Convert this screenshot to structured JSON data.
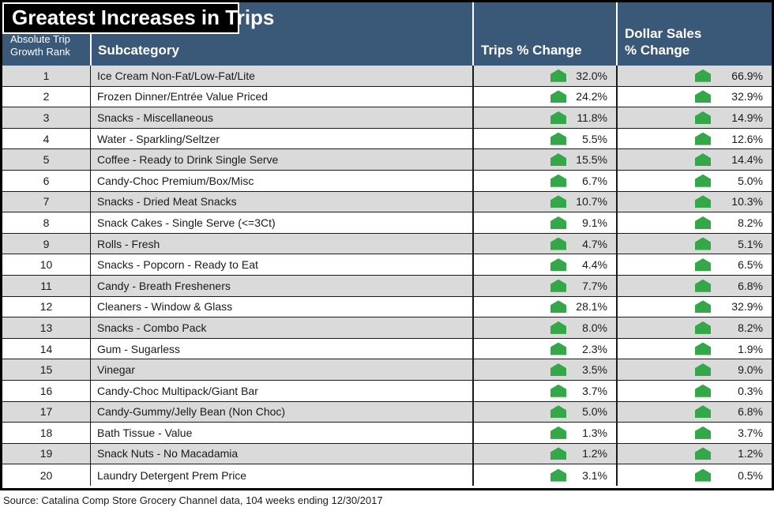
{
  "title": "Greatest Increases in Trips",
  "header": {
    "rank_line1": "Absolute Trip",
    "rank_line2": "Growth Rank",
    "subcategory": "Subcategory",
    "trips": "Trips % Change",
    "dollar_line1": "Dollar Sales",
    "dollar_line2": "% Change"
  },
  "source": "Source: Catalina Comp Store Grocery Channel data, 104 weeks ending 12/30/2017",
  "icons": {
    "up_arrow": "green up-arrow indicator shown beside every percentage value"
  },
  "colors": {
    "header_blue": "#3a5878",
    "title_bg": "#000000",
    "row_alt_gray": "#dadada",
    "grid_line": "#1a1a1a",
    "increase_green": "#34a849"
  },
  "chart_data": {
    "type": "table",
    "title": "Greatest Increases in Trips",
    "columns": [
      "Absolute Trip Growth Rank",
      "Subcategory",
      "Trips % Change",
      "Dollar Sales % Change"
    ],
    "rows": [
      [
        1,
        "Ice Cream Non-Fat/Low-Fat/Lite",
        "32.0%",
        "66.9%"
      ],
      [
        2,
        "Frozen Dinner/Entrée Value Priced",
        "24.2%",
        "32.9%"
      ],
      [
        3,
        "Snacks - Miscellaneous",
        "11.8%",
        "14.9%"
      ],
      [
        4,
        "Water - Sparkling/Seltzer",
        "5.5%",
        "12.6%"
      ],
      [
        5,
        "Coffee - Ready to Drink Single Serve",
        "15.5%",
        "14.4%"
      ],
      [
        6,
        "Candy-Choc Premium/Box/Misc",
        "6.7%",
        "5.0%"
      ],
      [
        7,
        "Snacks - Dried Meat Snacks",
        "10.7%",
        "10.3%"
      ],
      [
        8,
        "Snack Cakes - Single Serve (<=3Ct)",
        "9.1%",
        "8.2%"
      ],
      [
        9,
        "Rolls - Fresh",
        "4.7%",
        "5.1%"
      ],
      [
        10,
        "Snacks - Popcorn - Ready to Eat",
        "4.4%",
        "6.5%"
      ],
      [
        11,
        "Candy - Breath Fresheners",
        "7.7%",
        "6.8%"
      ],
      [
        12,
        "Cleaners - Window & Glass",
        "28.1%",
        "32.9%"
      ],
      [
        13,
        "Snacks - Combo Pack",
        "8.0%",
        "8.2%"
      ],
      [
        14,
        "Gum - Sugarless",
        "2.3%",
        "1.9%"
      ],
      [
        15,
        "Vinegar",
        "3.5%",
        "9.0%"
      ],
      [
        16,
        "Candy-Choc Multipack/Giant Bar",
        "3.7%",
        "0.3%"
      ],
      [
        17,
        "Candy-Gummy/Jelly Bean (Non Choc)",
        "5.0%",
        "6.8%"
      ],
      [
        18,
        "Bath Tissue - Value",
        "1.3%",
        "3.7%"
      ],
      [
        19,
        "Snack Nuts - No Macadamia",
        "1.2%",
        "1.2%"
      ],
      [
        20,
        "Laundry Detergent Prem Price",
        "3.1%",
        "0.5%"
      ]
    ],
    "trips_pct_change": [
      32.0,
      24.2,
      11.8,
      5.5,
      15.5,
      6.7,
      10.7,
      9.1,
      4.7,
      4.4,
      7.7,
      28.1,
      8.0,
      2.3,
      3.5,
      3.7,
      5.0,
      1.3,
      1.2,
      3.1
    ],
    "dollar_sales_pct_change": [
      66.9,
      32.9,
      14.9,
      12.6,
      14.4,
      5.0,
      10.3,
      8.2,
      5.1,
      6.5,
      6.8,
      32.9,
      8.2,
      1.9,
      9.0,
      0.3,
      6.8,
      3.7,
      1.2,
      0.5
    ],
    "source": "Source: Catalina Comp Store Grocery Channel data, 104 weeks ending 12/30/2017",
    "legend_position": "none",
    "grid": true
  }
}
